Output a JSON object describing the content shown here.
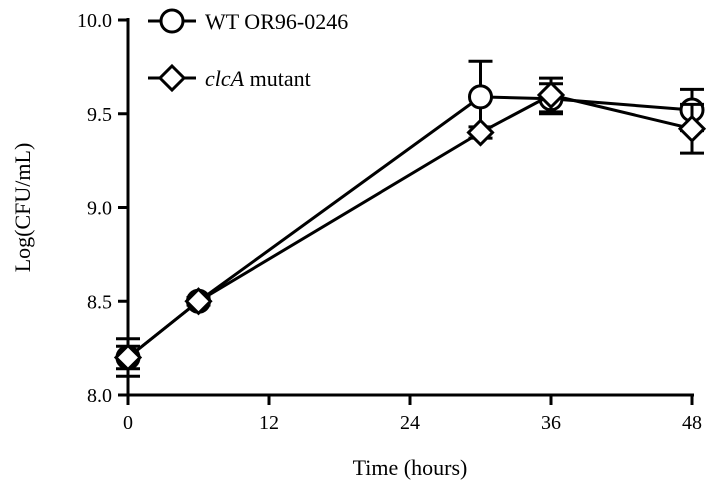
{
  "chart_data": {
    "type": "line",
    "title": "",
    "xlabel": "Time (hours)",
    "ylabel": "Log(CFU/mL)",
    "xlim": [
      0,
      48
    ],
    "ylim": [
      8.0,
      10.0
    ],
    "xticks": [
      0,
      12,
      24,
      36,
      48
    ],
    "xtick_labels": [
      "0",
      "12",
      "24",
      "36",
      "48"
    ],
    "yticks": [
      8.0,
      8.5,
      9.0,
      9.5,
      10.0
    ],
    "ytick_labels": [
      "8.0",
      "8.5",
      "9.0",
      "9.5",
      "10.0"
    ],
    "grid": false,
    "legend_position": "top-left",
    "series": [
      {
        "name": "WT OR96-0246",
        "name_parts": [
          {
            "text": "WT OR96-0246",
            "italic": false
          }
        ],
        "marker": "circle",
        "x": [
          0,
          6,
          30,
          36,
          48
        ],
        "y": [
          8.2,
          8.5,
          9.59,
          9.58,
          9.52
        ],
        "err": [
          0.06,
          0.02,
          0.19,
          0.08,
          0.11
        ]
      },
      {
        "name": "clcA mutant",
        "name_parts": [
          {
            "text": "clcA",
            "italic": true
          },
          {
            "text": " mutant",
            "italic": false
          }
        ],
        "marker": "diamond",
        "x": [
          0,
          6,
          30,
          36,
          48
        ],
        "y": [
          8.2,
          8.5,
          9.4,
          9.6,
          9.42
        ],
        "err": [
          0.1,
          0.02,
          0.03,
          0.09,
          0.13
        ]
      }
    ]
  }
}
